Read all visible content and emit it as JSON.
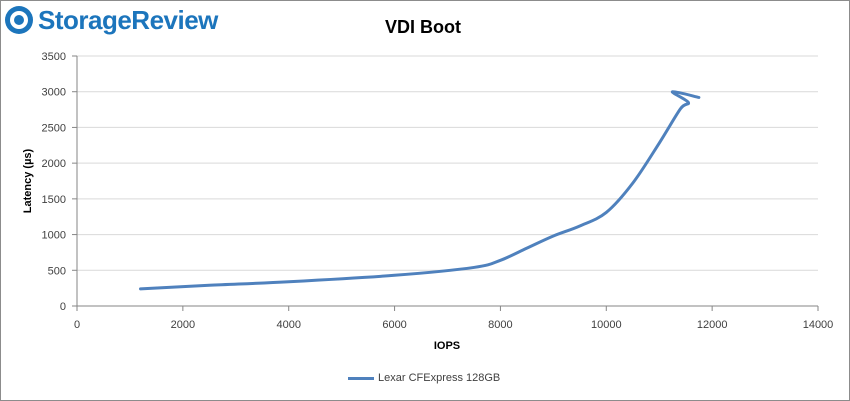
{
  "logo": {
    "text": "StorageReview"
  },
  "colors": {
    "series": "#4f81bd",
    "brand": "#1c75bc",
    "grid": "#d9d9d9"
  },
  "chart_data": {
    "type": "line",
    "title": "VDI Boot",
    "xlabel": "IOPS",
    "ylabel": "Latency (µs)",
    "xlim": [
      0,
      14000
    ],
    "ylim": [
      0,
      3500
    ],
    "x_ticks": [
      0,
      2000,
      4000,
      6000,
      8000,
      10000,
      12000,
      14000
    ],
    "y_ticks": [
      0,
      500,
      1000,
      1500,
      2000,
      2500,
      3000,
      3500
    ],
    "x_tick_labels": [
      "0",
      "2000",
      "4000",
      "6000",
      "8000",
      "10000",
      "12000",
      "14000"
    ],
    "y_tick_labels": [
      "0",
      "500",
      "1000",
      "1500",
      "2000",
      "2500",
      "3000",
      "3500"
    ],
    "grid": true,
    "legend_position": "bottom",
    "series": [
      {
        "name": "Lexar CFExpress 128GB",
        "x": [
          1200,
          2500,
          4000,
          6000,
          7500,
          8000,
          8500,
          9000,
          9500,
          10000,
          10500,
          11000,
          11400,
          11550,
          11250,
          11750
        ],
        "y": [
          240,
          290,
          340,
          430,
          540,
          640,
          810,
          980,
          1120,
          1310,
          1720,
          2280,
          2760,
          2850,
          3000,
          2920
        ]
      }
    ]
  }
}
